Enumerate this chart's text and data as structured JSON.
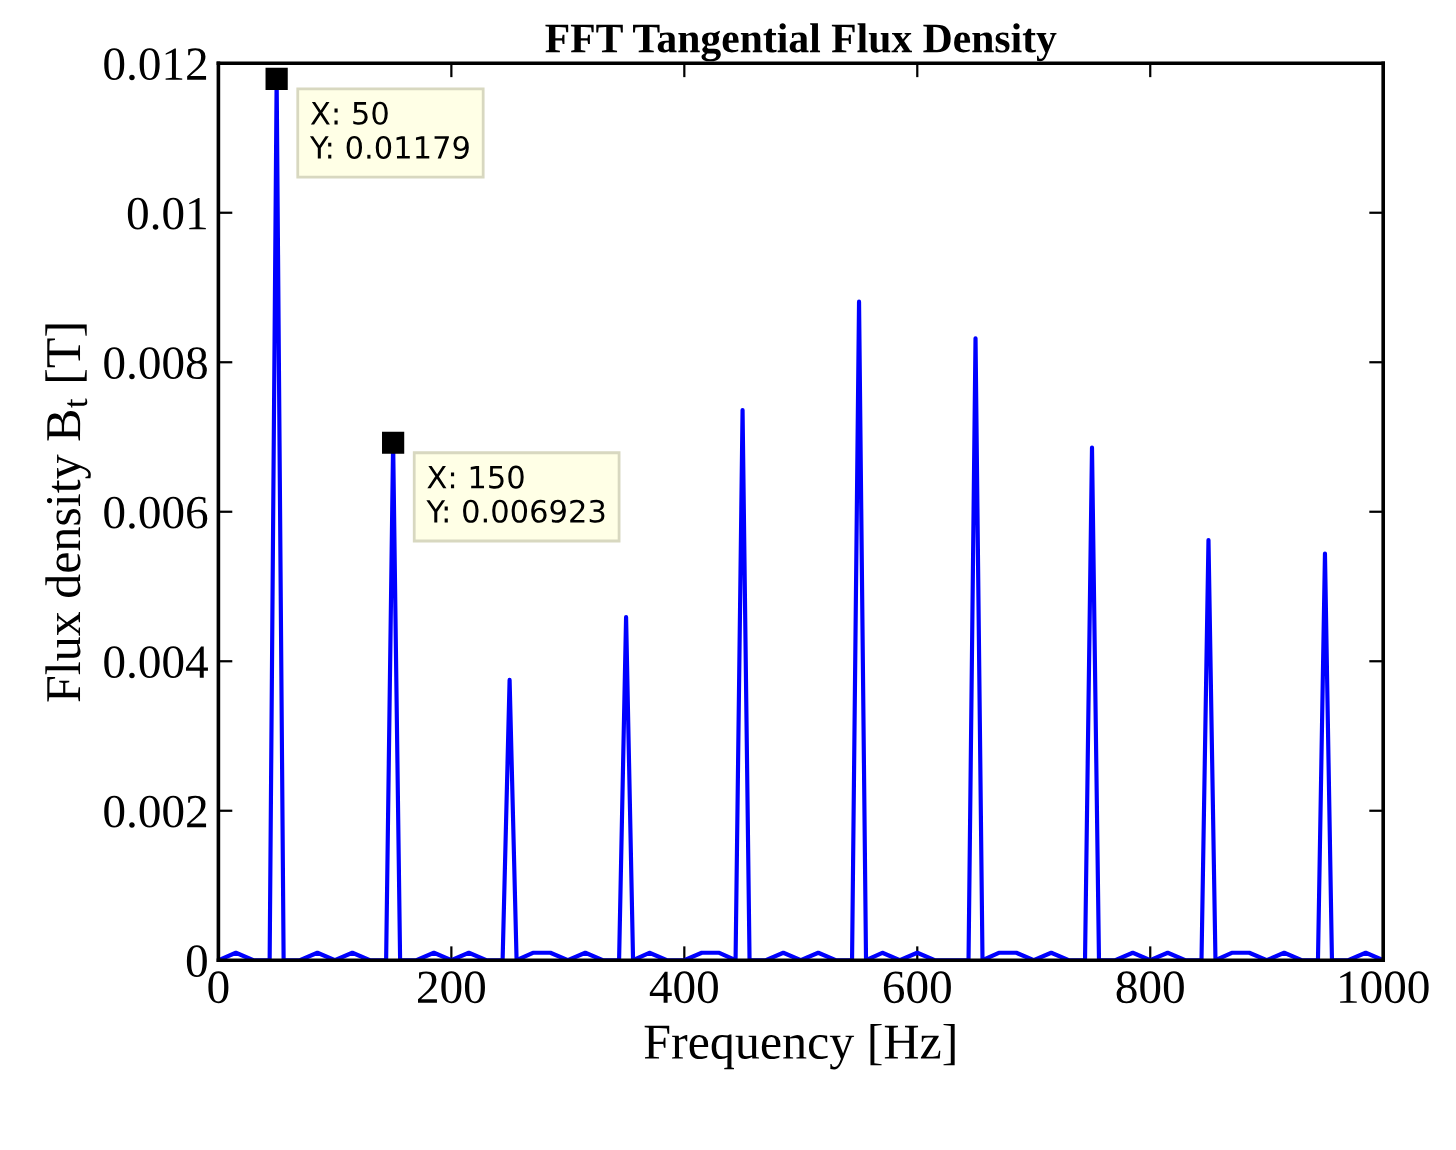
{
  "chart_data": {
    "type": "line",
    "title": "FFT Tangential Flux Density",
    "xlabel": "Frequency [Hz]",
    "ylabel": "Flux density B$_{t}$ [T]",
    "xlim": [
      0,
      1000
    ],
    "ylim": [
      0,
      0.012
    ],
    "xticks": [
      0,
      200,
      400,
      600,
      800,
      1000
    ],
    "yticks": [
      0,
      0.002,
      0.004,
      0.006,
      0.008,
      0.01,
      0.012
    ],
    "grid": false,
    "series": [
      {
        "color": "#0000ff",
        "x": [
          0,
          15,
          30,
          44,
          50,
          56,
          70,
          85,
          100,
          115,
          130,
          144,
          150,
          156,
          170,
          185,
          200,
          215,
          230,
          244,
          250,
          256,
          270,
          285,
          300,
          315,
          330,
          344,
          350,
          356,
          370,
          385,
          400,
          415,
          430,
          444,
          450,
          456,
          470,
          485,
          500,
          515,
          530,
          544,
          550,
          556,
          570,
          585,
          600,
          615,
          630,
          644,
          650,
          656,
          670,
          685,
          700,
          715,
          730,
          744,
          750,
          756,
          770,
          785,
          800,
          815,
          830,
          844,
          850,
          856,
          870,
          885,
          900,
          915,
          930,
          944,
          950,
          956,
          970,
          985,
          1000
        ],
        "values": [
          0,
          0.0001,
          0,
          0,
          0.01179,
          0,
          0,
          0.0001,
          0,
          0.0001,
          0,
          0,
          0.006923,
          0,
          0,
          0.0001,
          0,
          0.0001,
          0,
          0,
          0.00375,
          0,
          0.0001,
          0.0001,
          0,
          0.0001,
          0,
          0,
          0.00459,
          0,
          0.0001,
          0,
          0,
          0.0001,
          0.0001,
          0,
          0.00736,
          0,
          0,
          0.0001,
          0,
          0.0001,
          0,
          0,
          0.00881,
          0,
          0.0001,
          0,
          0.0001,
          0,
          0,
          0,
          0.00832,
          0,
          0.0001,
          0.0001,
          0,
          0.0001,
          0,
          0,
          0.00686,
          0,
          0,
          0.0001,
          0,
          0.0001,
          0,
          0,
          0.00562,
          0,
          0.0001,
          0.0001,
          0,
          0.0001,
          0,
          0,
          0.00544,
          0,
          0,
          0.0001,
          0
        ]
      }
    ],
    "annotations": [
      {
        "text": "X: 50\nY: 0.01179",
        "x": 50,
        "y": 0.01179
      },
      {
        "text": "X: 150\nY: 0.006923",
        "x": 150,
        "y": 0.006923
      }
    ]
  }
}
